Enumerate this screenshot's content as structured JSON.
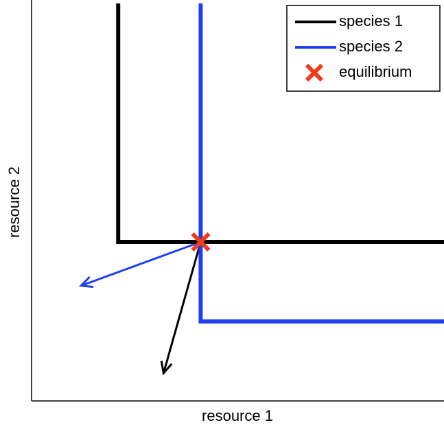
{
  "chart_data": {
    "type": "line",
    "xlabel": "resource 1",
    "ylabel": "resource 2",
    "xlim": [
      0,
      10
    ],
    "ylim": [
      0,
      10
    ],
    "legend": "upper right",
    "series": [
      {
        "name": "species 1",
        "color": "#000000",
        "x": [
          2.1,
          2.1,
          10
        ],
        "values": [
          10,
          4.0,
          4.0
        ]
      },
      {
        "name": "species 2",
        "color": "#1f3ff0",
        "x": [
          4.1,
          4.1,
          10
        ],
        "values": [
          10,
          2.0,
          2.0
        ]
      },
      {
        "name": "equilibrium",
        "color": "#f03c1e",
        "marker": "x",
        "x": [
          4.1
        ],
        "values": [
          4.0
        ]
      }
    ],
    "arrows": [
      {
        "color": "#000000",
        "x": [
          4.1,
          3.2
        ],
        "values": [
          4.0,
          0.7
        ]
      },
      {
        "color": "#1f3ff0",
        "x": [
          4.1,
          1.2
        ],
        "values": [
          4.0,
          2.9
        ]
      }
    ]
  }
}
